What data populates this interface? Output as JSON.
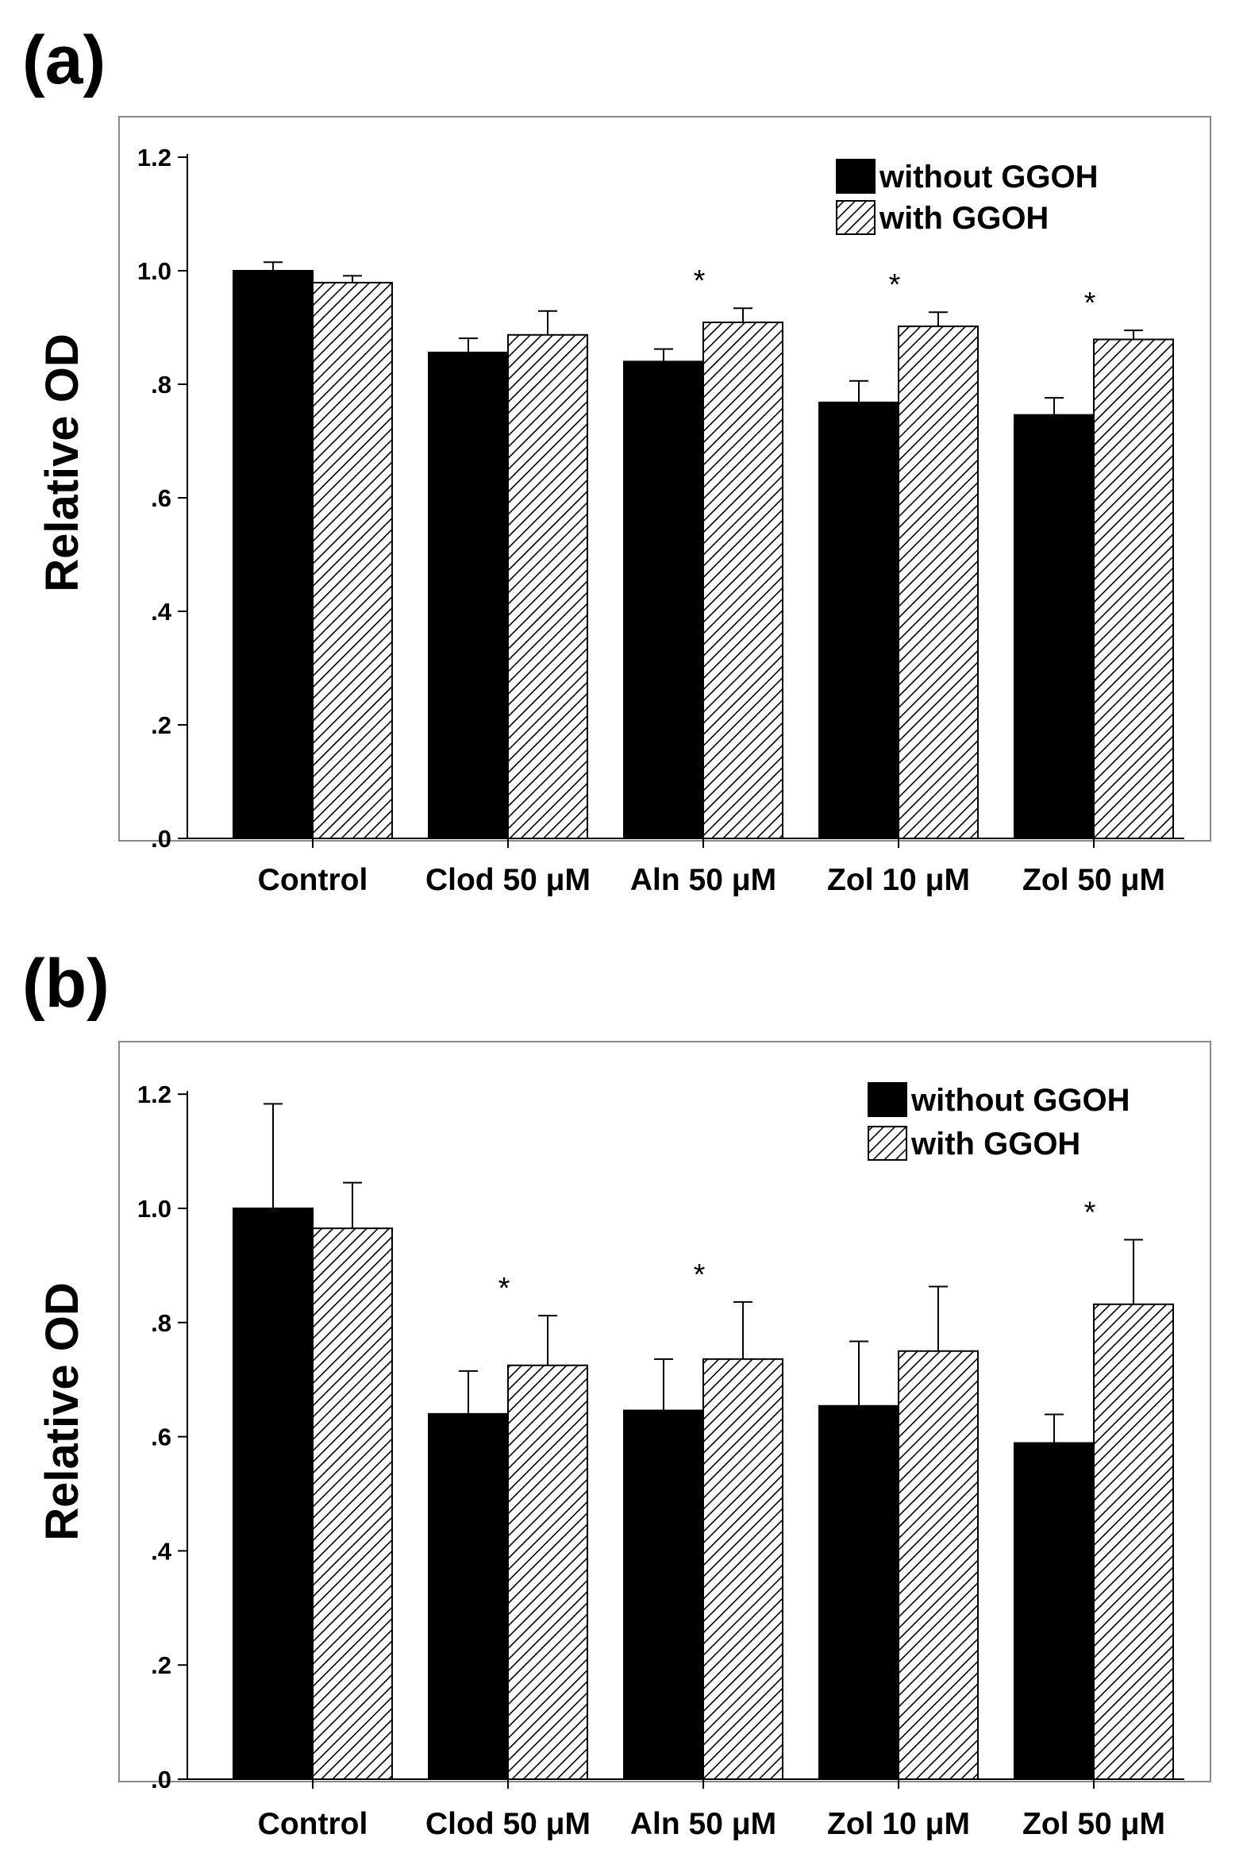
{
  "colors": {
    "without": "#000000",
    "with_hatch_bg": "#ffffff",
    "with_hatch_line": "#000000",
    "frame": "#8a8a8a",
    "axis": "#000000"
  },
  "chart_data": [
    {
      "panel": "(a)",
      "type": "bar",
      "ylabel": "Relative OD",
      "xlabel": "",
      "ylim": [
        0,
        1.3
      ],
      "yticks": [
        {
          "value": 0.0,
          "label": ".0"
        },
        {
          "value": 0.2,
          "label": ".2"
        },
        {
          "value": 0.4,
          "label": ".4"
        },
        {
          "value": 0.6,
          "label": ".6"
        },
        {
          "value": 0.8,
          "label": ".8"
        },
        {
          "value": 1.0,
          "label": "1.0"
        },
        {
          "value": 1.2,
          "label": "1.2"
        }
      ],
      "categories": [
        "Control",
        "Clod 50 μM",
        "Aln 50 μM",
        "Zol 10 μM",
        "Zol 50 μM"
      ],
      "legend": {
        "position": "top-right",
        "entries": [
          "without GGOH",
          "with GGOH"
        ]
      },
      "series": [
        {
          "name": "without GGOH",
          "pattern": "solid",
          "values": [
            1.0,
            0.856,
            0.84,
            0.768,
            0.746
          ],
          "errors": [
            0.015,
            0.025,
            0.022,
            0.038,
            0.03
          ]
        },
        {
          "name": "with GGOH",
          "pattern": "hatch",
          "values": [
            0.979,
            0.887,
            0.909,
            0.902,
            0.879
          ],
          "errors": [
            0.012,
            0.042,
            0.025,
            0.025,
            0.016
          ]
        }
      ],
      "significance": [
        {
          "category_index": 2,
          "label": "*"
        },
        {
          "category_index": 3,
          "label": "*"
        },
        {
          "category_index": 4,
          "label": "*"
        }
      ]
    },
    {
      "panel": "(b)",
      "type": "bar",
      "ylabel": "Relative OD",
      "xlabel": "",
      "ylim": [
        0,
        1.3
      ],
      "yticks": [
        {
          "value": 0.0,
          "label": ".0"
        },
        {
          "value": 0.2,
          "label": ".2"
        },
        {
          "value": 0.4,
          "label": ".4"
        },
        {
          "value": 0.6,
          "label": ".6"
        },
        {
          "value": 0.8,
          "label": ".8"
        },
        {
          "value": 1.0,
          "label": "1.0"
        },
        {
          "value": 1.2,
          "label": "1.2"
        }
      ],
      "categories": [
        "Control",
        "Clod 50 μM",
        "Aln 50 μM",
        "Zol 10 μM",
        "Zol 50 μM"
      ],
      "legend": {
        "position": "top-right",
        "entries": [
          "without GGOH",
          "with GGOH"
        ]
      },
      "series": [
        {
          "name": "without GGOH",
          "pattern": "solid",
          "values": [
            1.0,
            0.64,
            0.646,
            0.654,
            0.589
          ],
          "errors": [
            0.183,
            0.075,
            0.09,
            0.113,
            0.05
          ]
        },
        {
          "name": "with GGOH",
          "pattern": "hatch",
          "values": [
            0.965,
            0.725,
            0.736,
            0.75,
            0.832
          ],
          "errors": [
            0.08,
            0.087,
            0.1,
            0.113,
            0.113
          ]
        }
      ],
      "significance": [
        {
          "category_index": 1,
          "label": "*"
        },
        {
          "category_index": 2,
          "label": "*"
        },
        {
          "category_index": 4,
          "label": "*"
        }
      ]
    }
  ]
}
